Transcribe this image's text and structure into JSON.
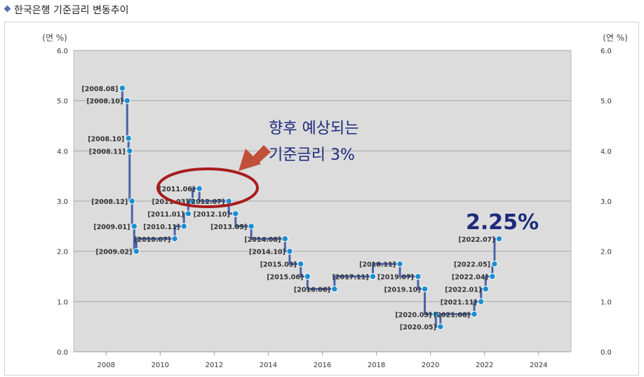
{
  "header": {
    "title": "한국은행 기준금리 변동추이"
  },
  "annotations": {
    "forecast_line1": "향후 예상되는",
    "forecast_line2": "기준금리 3%",
    "current_rate": "2.25%"
  },
  "colors": {
    "line": "#4a64a8",
    "point": "#1a8fd1",
    "circle": "#a81c1c",
    "arrow": "#c0503a",
    "plot_bg": "#dcdcdc"
  },
  "chart_data": {
    "type": "line",
    "step": true,
    "xlim": [
      2006.8,
      2025.2
    ],
    "ylim": [
      0,
      6
    ],
    "y_unit_left": "(연 %)",
    "y_unit_right": "(연 %)",
    "x_ticks": [
      "2008",
      "2010",
      "2012",
      "2014",
      "2016",
      "2018",
      "2020",
      "2022",
      "2024"
    ],
    "y_ticks": [
      "0.0",
      "1.0",
      "2.0",
      "3.0",
      "4.0",
      "5.0",
      "6.0"
    ],
    "grid": true,
    "points": [
      {
        "label": "[2008.08]",
        "x": 2008.6,
        "y": 5.25
      },
      {
        "label": "[2008.10]",
        "x": 2008.78,
        "y": 5.0
      },
      {
        "label": "[2008.10]",
        "x": 2008.83,
        "y": 4.25
      },
      {
        "label": "[2008.11]",
        "x": 2008.87,
        "y": 4.0
      },
      {
        "label": "[2008.12]",
        "x": 2008.96,
        "y": 3.0
      },
      {
        "label": "[2009.01]",
        "x": 2009.04,
        "y": 2.5
      },
      {
        "label": "[2009.02]",
        "x": 2009.12,
        "y": 2.0
      },
      {
        "label": "[2010.07]",
        "x": 2010.54,
        "y": 2.25
      },
      {
        "label": "[2010.11]",
        "x": 2010.88,
        "y": 2.5
      },
      {
        "label": "[2011.01]",
        "x": 2011.04,
        "y": 2.75
      },
      {
        "label": "[2011.03]",
        "x": 2011.2,
        "y": 3.0
      },
      {
        "label": "[2011.06]",
        "x": 2011.45,
        "y": 3.25
      },
      {
        "label": "[2012.07]",
        "x": 2012.54,
        "y": 3.0
      },
      {
        "label": "[2012.10]",
        "x": 2012.79,
        "y": 2.75
      },
      {
        "label": "[2013.05]",
        "x": 2013.37,
        "y": 2.5
      },
      {
        "label": "[2014.08]",
        "x": 2014.62,
        "y": 2.25
      },
      {
        "label": "[2014.10]",
        "x": 2014.79,
        "y": 2.0
      },
      {
        "label": "[2015.03]",
        "x": 2015.2,
        "y": 1.75
      },
      {
        "label": "[2015.06]",
        "x": 2015.45,
        "y": 1.5
      },
      {
        "label": "[2016.06]",
        "x": 2016.45,
        "y": 1.25
      },
      {
        "label": "[2017.11]",
        "x": 2017.87,
        "y": 1.5
      },
      {
        "label": "[2018.11]",
        "x": 2018.87,
        "y": 1.75
      },
      {
        "label": "[2019.07]",
        "x": 2019.54,
        "y": 1.5
      },
      {
        "label": "[2019.10]",
        "x": 2019.79,
        "y": 1.25
      },
      {
        "label": "[2020.03]",
        "x": 2020.2,
        "y": 0.75
      },
      {
        "label": "[2020.05]",
        "x": 2020.37,
        "y": 0.5
      },
      {
        "label": "[2021.08]",
        "x": 2021.62,
        "y": 0.75
      },
      {
        "label": "[2021.11]",
        "x": 2021.87,
        "y": 1.0
      },
      {
        "label": "[2022.01]",
        "x": 2022.04,
        "y": 1.25
      },
      {
        "label": "[2022.04]",
        "x": 2022.29,
        "y": 1.5
      },
      {
        "label": "[2022.05]",
        "x": 2022.37,
        "y": 1.75
      },
      {
        "label": "[2022.07]",
        "x": 2022.54,
        "y": 2.25
      }
    ]
  }
}
